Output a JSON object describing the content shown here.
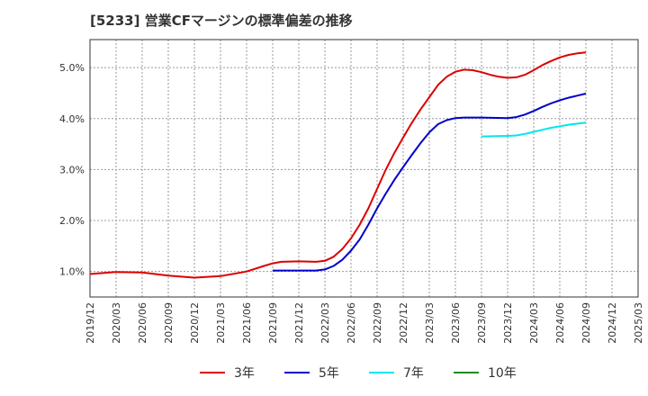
{
  "title": "[5233]  営業CFマージンの標準偏差の推移",
  "chart_data": {
    "type": "line",
    "title": "[5233]  営業CFマージンの標準偏差の推移",
    "xlabel": "",
    "ylabel": "",
    "x_ticks": [
      "2019/12",
      "2020/03",
      "2020/06",
      "2020/09",
      "2020/12",
      "2021/03",
      "2021/06",
      "2021/09",
      "2021/12",
      "2022/03",
      "2022/06",
      "2022/09",
      "2022/12",
      "2023/03",
      "2023/06",
      "2023/09",
      "2023/12",
      "2024/03",
      "2024/06",
      "2024/09",
      "2024/12",
      "2025/03"
    ],
    "y_ticks": [
      1.0,
      2.0,
      3.0,
      4.0,
      5.0
    ],
    "y_tick_labels": [
      "1.0%",
      "2.0%",
      "3.0%",
      "4.0%",
      "5.0%"
    ],
    "ylim": [
      0.5,
      5.55
    ],
    "grid": true,
    "legend_position": "bottom",
    "series": [
      {
        "name": "3年",
        "color": "#dd0000",
        "x": [
          "2019/12",
          "2020/03",
          "2020/06",
          "2020/09",
          "2020/12",
          "2021/03",
          "2021/06",
          "2021/08",
          "2021/09",
          "2021/10",
          "2021/12",
          "2022/02",
          "2022/03",
          "2022/04",
          "2022/05",
          "2022/06",
          "2022/07",
          "2022/08",
          "2022/09",
          "2022/10",
          "2022/11",
          "2022/12",
          "2023/01",
          "2023/02",
          "2023/03",
          "2023/04",
          "2023/05",
          "2023/06",
          "2023/07",
          "2023/08",
          "2023/09",
          "2023/10",
          "2023/11",
          "2023/12",
          "2024/01",
          "2024/02",
          "2024/03",
          "2024/04",
          "2024/05",
          "2024/06",
          "2024/07",
          "2024/08",
          "2024/09"
        ],
        "values": [
          0.95,
          0.99,
          0.98,
          0.92,
          0.88,
          0.91,
          1.0,
          1.11,
          1.16,
          1.19,
          1.2,
          1.19,
          1.21,
          1.29,
          1.44,
          1.65,
          1.92,
          2.24,
          2.62,
          3.0,
          3.33,
          3.63,
          3.92,
          4.18,
          4.42,
          4.66,
          4.82,
          4.92,
          4.96,
          4.95,
          4.91,
          4.86,
          4.82,
          4.8,
          4.81,
          4.86,
          4.95,
          5.05,
          5.13,
          5.2,
          5.25,
          5.28,
          5.3
        ]
      },
      {
        "name": "5年",
        "color": "#0000cc",
        "x": [
          "2021/09",
          "2021/12",
          "2022/02",
          "2022/03",
          "2022/04",
          "2022/05",
          "2022/06",
          "2022/07",
          "2022/08",
          "2022/09",
          "2022/10",
          "2022/11",
          "2022/12",
          "2023/01",
          "2023/02",
          "2023/03",
          "2023/04",
          "2023/05",
          "2023/06",
          "2023/07",
          "2023/09",
          "2023/12",
          "2024/01",
          "2024/02",
          "2024/03",
          "2024/04",
          "2024/05",
          "2024/06",
          "2024/07",
          "2024/08",
          "2024/09"
        ],
        "values": [
          1.02,
          1.02,
          1.02,
          1.04,
          1.11,
          1.23,
          1.41,
          1.63,
          1.92,
          2.24,
          2.53,
          2.8,
          3.05,
          3.29,
          3.52,
          3.73,
          3.89,
          3.97,
          4.01,
          4.02,
          4.02,
          4.01,
          4.03,
          4.08,
          4.15,
          4.23,
          4.3,
          4.36,
          4.41,
          4.45,
          4.49
        ]
      },
      {
        "name": "7年",
        "color": "#00e5ee",
        "x": [
          "2023/09",
          "2023/12",
          "2024/01",
          "2024/02",
          "2024/03",
          "2024/04",
          "2024/05",
          "2024/06",
          "2024/07",
          "2024/08",
          "2024/09"
        ],
        "values": [
          3.65,
          3.66,
          3.67,
          3.7,
          3.74,
          3.78,
          3.82,
          3.85,
          3.88,
          3.9,
          3.92
        ]
      },
      {
        "name": "10年",
        "color": "#228b22",
        "x": [],
        "values": []
      }
    ]
  }
}
